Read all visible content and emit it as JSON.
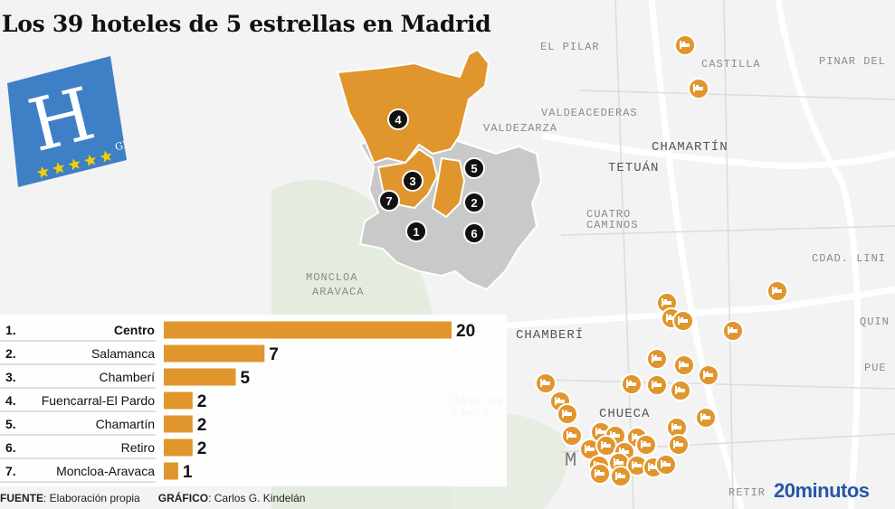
{
  "title": "Los 39 hoteles de 5 estrellas en Madrid",
  "logo": {
    "letter": "H",
    "tag": "GL",
    "stars": 5
  },
  "map": {
    "place_labels": [
      "EL PILAR",
      "CASTILLA",
      "PINAR DEL",
      "VALDEACEDERAS",
      "VALDEZARZA",
      "CHAMARTÍN",
      "TETUÁN",
      "CUATRO",
      "CAMINOS",
      "MONCLOA",
      "ARAVACA",
      "CDAD. LINI",
      "QUIN",
      "CHAMBERÍ",
      "PUE",
      "CASA DE",
      "CAMPO",
      "CHUECA",
      "M",
      "RETIR"
    ],
    "district_markers": [
      "1",
      "2",
      "3",
      "4",
      "5",
      "6",
      "7"
    ],
    "hotel_icon": "hotel-bed-icon",
    "accent": "#e0962d",
    "district_gray": "#c8c8c8"
  },
  "chart_data": {
    "type": "bar",
    "orientation": "horizontal",
    "ranks": [
      "1.",
      "2.",
      "3.",
      "4.",
      "5.",
      "6.",
      "7."
    ],
    "categories": [
      "Centro",
      "Salamanca",
      "Chamberí",
      "Fuencarral-El Pardo",
      "Chamartín",
      "Retiro",
      "Moncloa-Aravaca"
    ],
    "values": [
      20,
      7,
      5,
      2,
      2,
      2,
      1
    ],
    "bar_color": "#e0962d",
    "xlim": [
      0,
      20
    ]
  },
  "footer": {
    "source_label": "FUENTE",
    "source_text": ": Elaboración propia",
    "graphic_label": "GRÁFICO",
    "graphic_text": ": Carlos G. Kindelán"
  },
  "brand": "20minutos"
}
